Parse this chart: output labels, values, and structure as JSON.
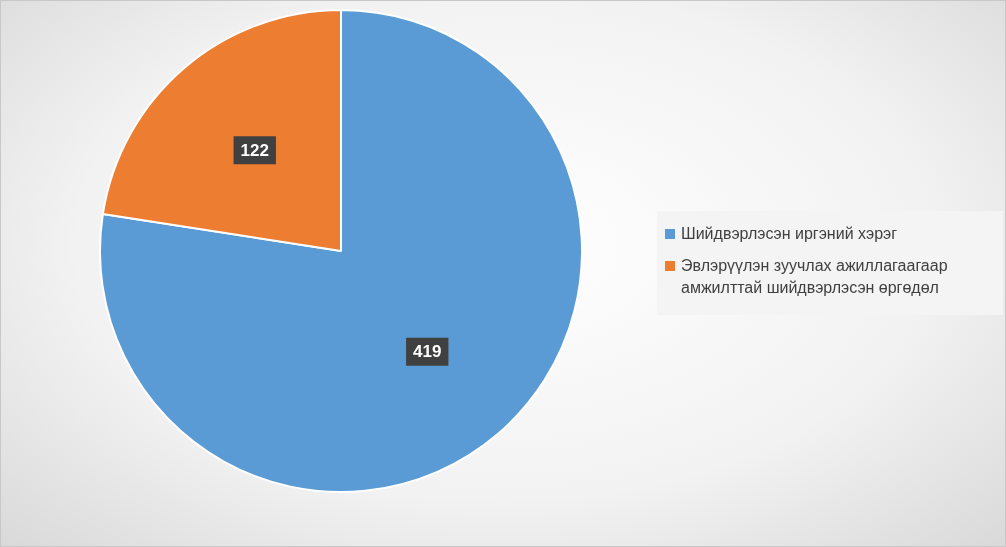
{
  "chart_data": {
    "type": "pie",
    "categories": [
      "Шийдвэрлэсэн иргэний хэрэг",
      "Эвлэрүүлэн зуучлах ажиллагаагаар амжилттай шийдвэрлэсэн өргөдөл"
    ],
    "values": [
      419,
      122
    ],
    "colors": [
      "#5b9bd5",
      "#ed7d31"
    ],
    "data_labels": true,
    "legend": "right"
  }
}
